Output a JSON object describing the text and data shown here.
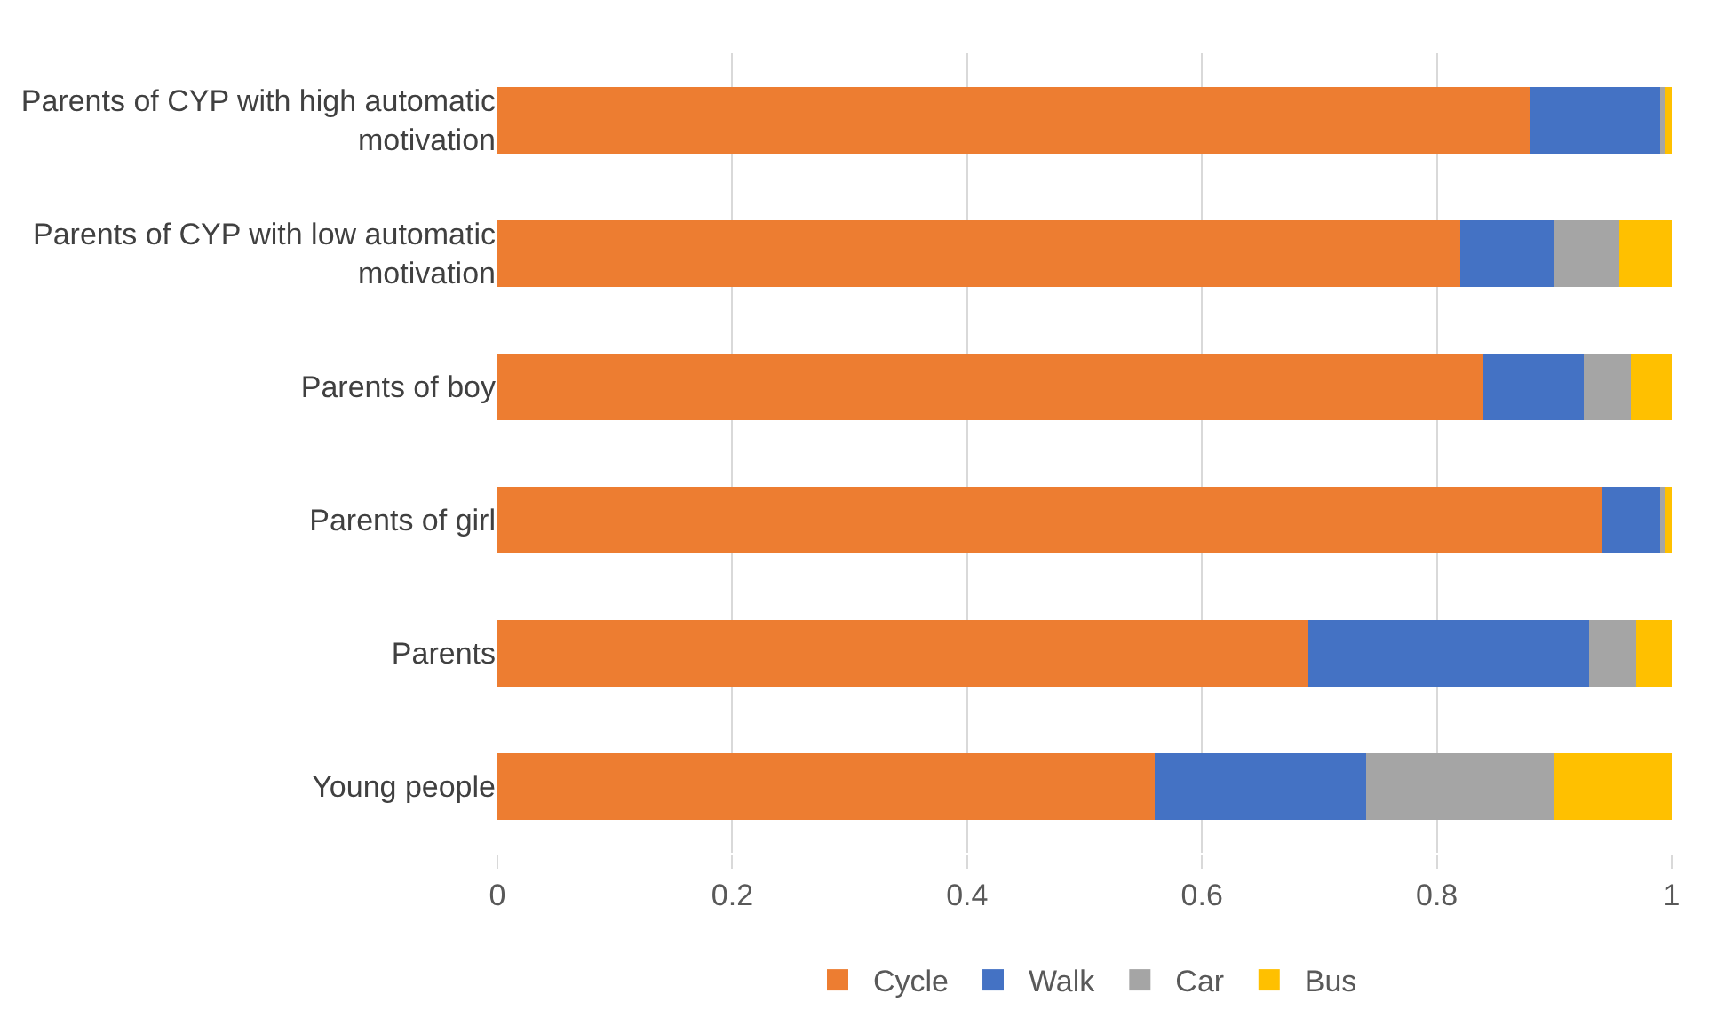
{
  "chart_data": {
    "type": "bar",
    "orientation": "horizontal",
    "stacked": true,
    "categories": [
      "Parents of CYP with high automatic motivation",
      "Parents of CYP with low automatic motivation",
      "Parents of boy",
      "Parents of girl",
      "Parents",
      "Young people"
    ],
    "series": [
      {
        "name": "Cycle",
        "color": "#ed7d31",
        "values": [
          0.88,
          0.82,
          0.84,
          0.94,
          0.69,
          0.56
        ]
      },
      {
        "name": "Walk",
        "color": "#4472c4",
        "values": [
          0.11,
          0.08,
          0.085,
          0.05,
          0.24,
          0.18
        ]
      },
      {
        "name": "Car",
        "color": "#a5a5a5",
        "values": [
          0.005,
          0.055,
          0.04,
          0.004,
          0.04,
          0.16
        ]
      },
      {
        "name": "Bus",
        "color": "#ffc000",
        "values": [
          0.005,
          0.045,
          0.035,
          0.006,
          0.03,
          0.1
        ]
      }
    ],
    "xlim": [
      0,
      1
    ],
    "xticks": [
      0,
      0.2,
      0.4,
      0.6,
      0.8,
      1
    ],
    "grid": "x",
    "legend": "bottom"
  }
}
